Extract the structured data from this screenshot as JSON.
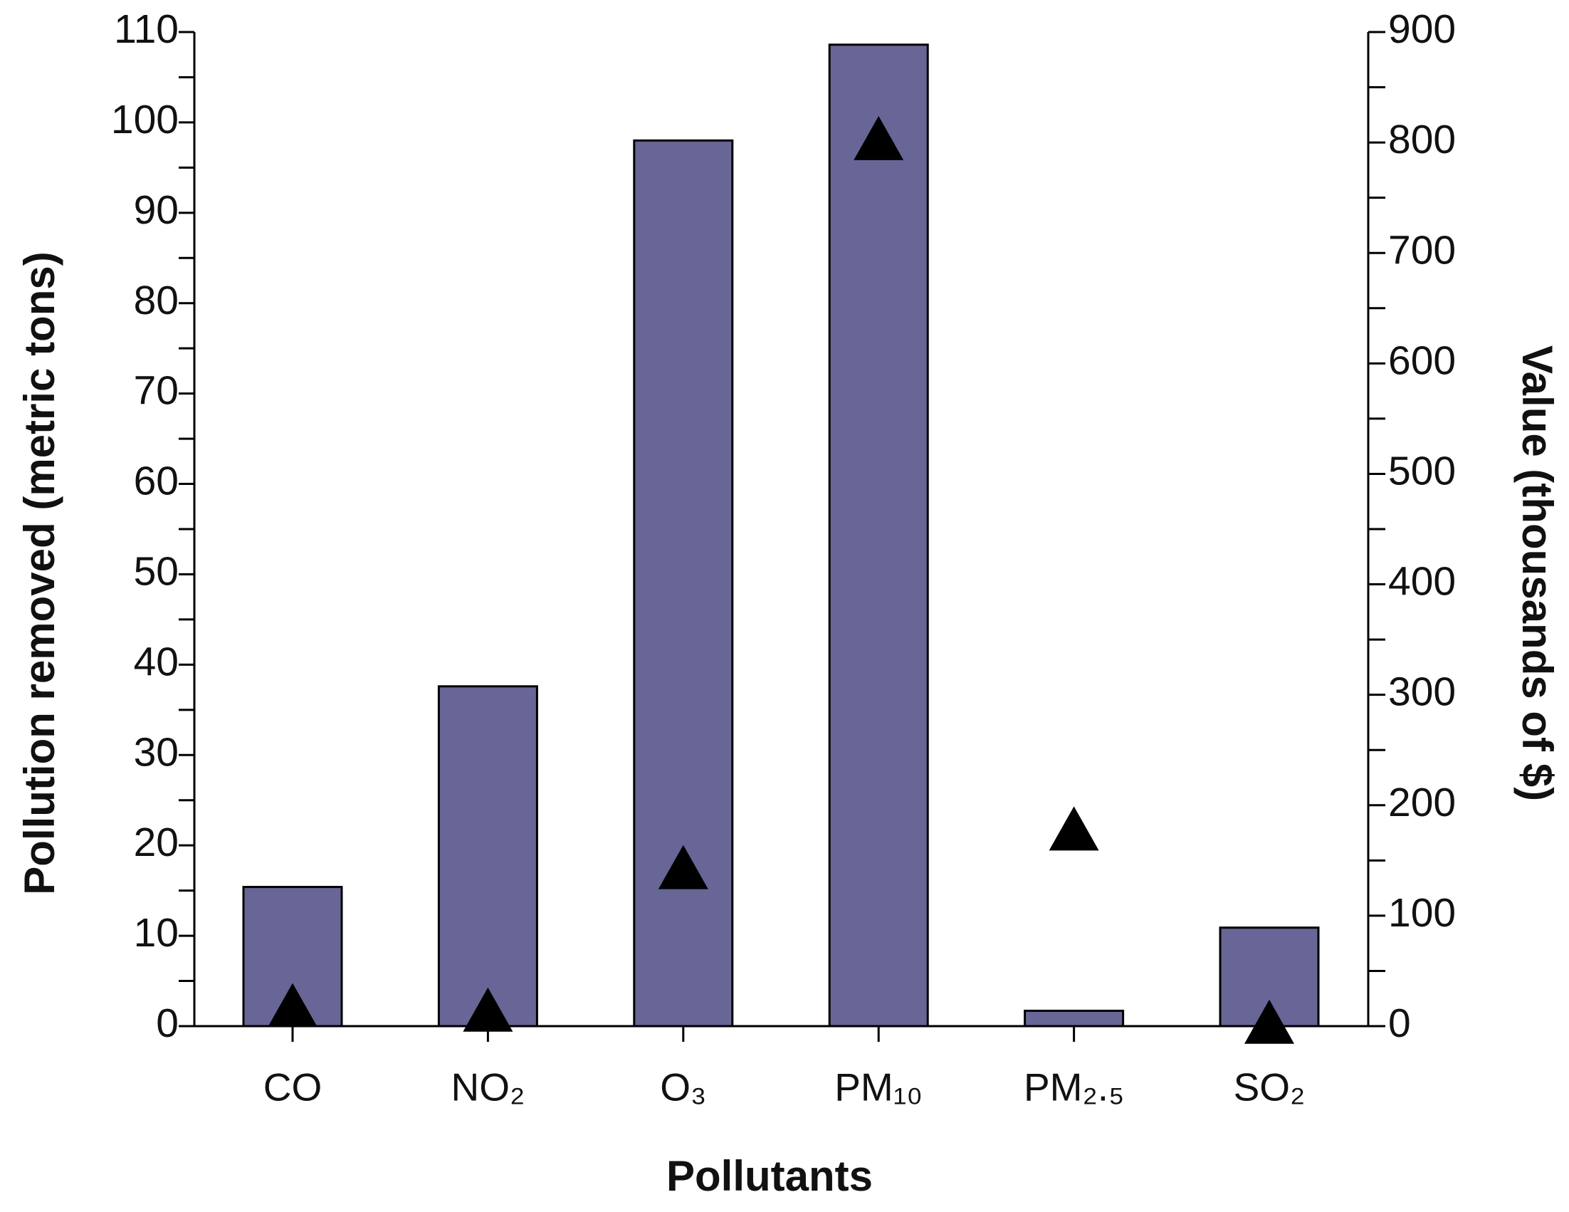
{
  "chart_data": {
    "type": "bar",
    "x_label": "Pollutants",
    "y_label": "Pollution removed (metric tons)",
    "y2_label": "Value (thousands of $)",
    "categories": [
      "CO",
      "NO₂",
      "O₃",
      "PM₁₀",
      "PM₂.₅",
      "SO₂"
    ],
    "series": [
      {
        "type": "bar",
        "color": "#676696",
        "values": [
          15.4,
          37.6,
          98.0,
          108.6,
          1.7,
          10.9
        ]
      },
      {
        "type": "scatter",
        "marker": "triangle",
        "color": "#000000",
        "axis": "y2",
        "values": [
          15,
          11,
          140,
          800,
          175,
          0
        ]
      }
    ],
    "ylim": [
      0,
      110
    ],
    "yticks": [
      0,
      10,
      20,
      30,
      40,
      50,
      60,
      70,
      80,
      90,
      100,
      110
    ],
    "y2lim": [
      0,
      900
    ],
    "y2ticks": [
      0,
      100,
      200,
      300,
      400,
      500,
      600,
      700,
      800,
      900
    ],
    "grid": false
  }
}
